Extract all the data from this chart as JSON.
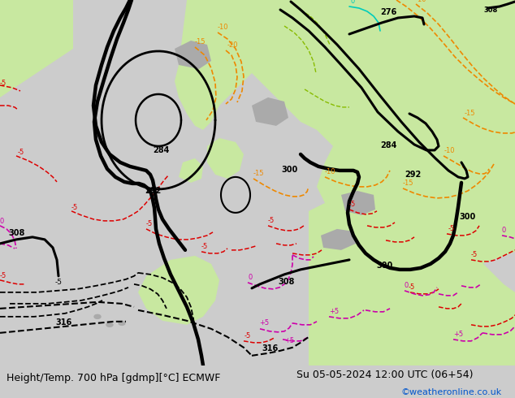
{
  "title_left": "Height/Temp. 700 hPa [gdmp][°C] ECMWF",
  "title_right": "Su 05-05-2024 12:00 UTC (06+54)",
  "watermark": "©weatheronline.co.uk",
  "fig_width": 6.34,
  "fig_height": 4.9,
  "dpi": 100,
  "bg_color": "#cccccc",
  "land_green": "#c8e8a0",
  "land_gray": "#aaaaaa",
  "ocean_gray": "#cccccc",
  "bottom_bar_color": "#ffffff",
  "bottom_bar_height": 0.082,
  "title_fontsize": 9.0,
  "watermark_fontsize": 8.0,
  "watermark_color": "#0055cc",
  "title_color": "#000000"
}
